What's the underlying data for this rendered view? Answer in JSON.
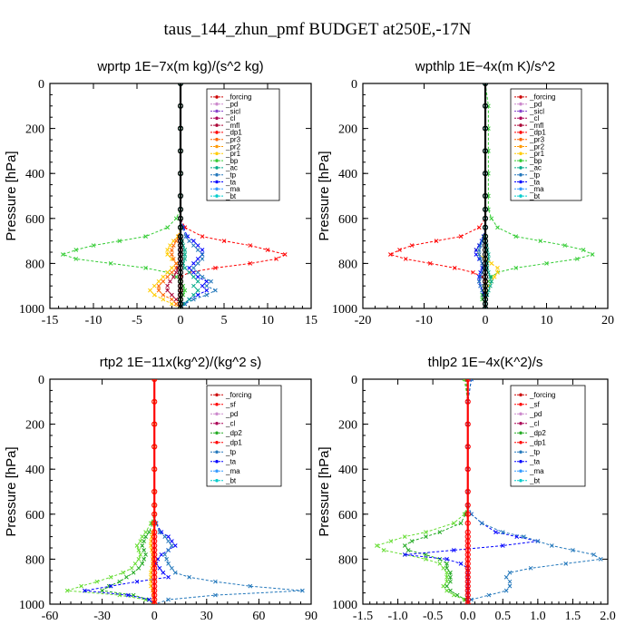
{
  "figure": {
    "title": "taus_144_zhun_pmf  BUDGET at250E,-17N"
  },
  "chart_data": [
    {
      "type": "line",
      "title": "wprtp   1E−7x(m kg)/(s^2 kg)",
      "ylabel": "Pressure [hPa]",
      "xlim": [
        -15,
        15
      ],
      "ylim": [
        1000,
        0
      ],
      "xticks": [
        -15,
        -10,
        -5,
        0,
        5,
        10,
        15
      ],
      "xtick_labels": [
        "-15",
        "-10",
        "-5",
        "0",
        "5",
        "10",
        "15"
      ],
      "yticks": [
        0,
        200,
        400,
        600,
        800,
        1000
      ],
      "pressure": [
        0,
        100,
        200,
        300,
        400,
        500,
        560,
        600,
        640,
        680,
        700,
        720,
        740,
        760,
        780,
        800,
        820,
        840,
        860,
        880,
        900,
        920,
        940,
        960,
        980,
        1000
      ],
      "legend": [
        "_forcing",
        "_pd",
        "_sicl",
        "_cl",
        "_mfl",
        "_dp1",
        "_pr3",
        "_pr2",
        "_pr1",
        "_bp",
        "_ac",
        "_tp",
        "_ta",
        "_ma",
        "_bt"
      ],
      "series": [
        {
          "name": "_dp1",
          "color": "#ff0000",
          "values": [
            0,
            0,
            0,
            0,
            0,
            0,
            0,
            0,
            0.5,
            2.5,
            5,
            8,
            10,
            12,
            11,
            8,
            4,
            1,
            0,
            0,
            0,
            0,
            0,
            0,
            0,
            0
          ]
        },
        {
          "name": "_bp",
          "color": "#33cc33",
          "values": [
            0,
            0,
            0,
            0,
            0,
            0,
            0,
            -0.5,
            -1.5,
            -4,
            -7,
            -10,
            -12,
            -13.5,
            -12,
            -8,
            -4,
            -1.5,
            -0.5,
            0,
            0.3,
            0.5,
            0.3,
            0,
            0,
            0
          ]
        },
        {
          "name": "_ta",
          "color": "#0000ff",
          "values": [
            0,
            0,
            0,
            0,
            0,
            0,
            0,
            0,
            0.3,
            0.8,
            1.5,
            2,
            2.5,
            2.5,
            2,
            1.5,
            1,
            1.5,
            2,
            3,
            2.5,
            3,
            2,
            1,
            0.5,
            0
          ]
        },
        {
          "name": "_tp",
          "color": "#2277bb",
          "values": [
            0,
            0,
            0,
            0,
            0,
            0,
            0,
            0,
            0.2,
            0.6,
            1,
            1.5,
            2,
            2.5,
            2.5,
            2,
            1.5,
            2,
            2.5,
            3.5,
            3,
            4,
            3,
            1.5,
            0.5,
            0
          ]
        },
        {
          "name": "_pr1",
          "color": "#ffcc00",
          "values": [
            0,
            0,
            0,
            0,
            0,
            0,
            0,
            0,
            0,
            -0.3,
            -0.8,
            -1.2,
            -1.5,
            -1.5,
            -1,
            -0.5,
            -1,
            -1.5,
            -2,
            -2.5,
            -3,
            -3.5,
            -3,
            -2,
            -1,
            0
          ]
        },
        {
          "name": "_pr3",
          "color": "#ff6600",
          "values": [
            0,
            0,
            0,
            0,
            0,
            0,
            0,
            0,
            0,
            -0.2,
            -0.5,
            -0.8,
            -1,
            -1,
            -0.8,
            -0.5,
            -0.5,
            -1,
            -1.5,
            -2,
            -2.5,
            -2.5,
            -2,
            -1,
            -0.5,
            0
          ]
        },
        {
          "name": "_mfl",
          "color": "#aa0033",
          "values": [
            0,
            0,
            0,
            0,
            0,
            0,
            0,
            0,
            0,
            0,
            0,
            0,
            0,
            0,
            0,
            0,
            -0.3,
            -0.5,
            -0.8,
            -1.2,
            -1.5,
            -1.5,
            -1,
            -0.5,
            0,
            0
          ]
        },
        {
          "name": "_ac",
          "color": "#00aa88",
          "values": [
            0,
            0,
            0,
            0,
            0,
            0,
            0,
            0,
            0,
            0,
            0.2,
            0.3,
            0.5,
            0.5,
            0.5,
            0.3,
            0.5,
            1,
            1.5,
            2,
            1.5,
            2,
            1.5,
            1,
            0.3,
            0
          ]
        },
        {
          "name": "_forcing",
          "color": "#000000",
          "values": [
            0,
            0,
            0,
            0,
            0,
            0,
            0,
            0,
            0,
            0,
            0,
            0,
            0,
            0,
            0,
            0,
            0,
            0,
            0,
            0,
            0,
            0,
            0,
            0,
            0,
            0
          ]
        }
      ]
    },
    {
      "type": "line",
      "title": "wpthlp   1E−4x(m K)/s^2",
      "ylabel": "Pressure [hPa]",
      "xlim": [
        -20,
        20
      ],
      "ylim": [
        1000,
        0
      ],
      "xticks": [
        -20,
        -10,
        0,
        10,
        20
      ],
      "xtick_labels": [
        "-20",
        "-10",
        "0",
        "10",
        "20"
      ],
      "yticks": [
        0,
        200,
        400,
        600,
        800,
        1000
      ],
      "pressure": [
        0,
        100,
        200,
        300,
        400,
        500,
        560,
        600,
        640,
        680,
        700,
        720,
        740,
        760,
        780,
        800,
        820,
        840,
        860,
        880,
        900,
        920,
        940,
        960,
        980,
        1000
      ],
      "legend": [
        "_forcing",
        "_pd",
        "_sicl",
        "_cl",
        "_mfl",
        "_dp1",
        "_pr3",
        "_pr2",
        "_pr1",
        "_bp",
        "_ac",
        "_tp",
        "_ta",
        "_ma",
        "_bt"
      ],
      "series": [
        {
          "name": "_dp1",
          "color": "#ff0000",
          "values": [
            0,
            0,
            0,
            0,
            0,
            0,
            0,
            0,
            -1,
            -4,
            -8,
            -12,
            -14,
            -15.5,
            -13,
            -9,
            -5,
            -2,
            -0.5,
            0,
            0,
            0,
            0,
            0,
            0,
            0
          ]
        },
        {
          "name": "_bp",
          "color": "#33cc33",
          "values": [
            0,
            0.5,
            0.5,
            0.5,
            0.5,
            0.5,
            0.5,
            1,
            2,
            5,
            9,
            13,
            16,
            17.5,
            15,
            10,
            5,
            2,
            1,
            0.5,
            0,
            0,
            -0.5,
            -0.5,
            0,
            0
          ]
        },
        {
          "name": "_pr1",
          "color": "#ffcc00",
          "values": [
            0,
            0,
            0,
            0,
            0,
            0,
            0,
            0,
            0,
            0,
            -0.5,
            -1,
            -1.5,
            -1,
            0,
            1,
            2,
            2,
            1.5,
            1,
            0.5,
            0,
            0,
            0,
            0,
            0
          ]
        },
        {
          "name": "_ta",
          "color": "#0000ff",
          "values": [
            0,
            0,
            0,
            0,
            0,
            0,
            0,
            0,
            0,
            -0.3,
            -0.6,
            -1,
            -1.5,
            -1.5,
            -1,
            -0.5,
            -0.5,
            -0.8,
            -1,
            -1,
            -0.8,
            -0.5,
            -0.3,
            0,
            0,
            0
          ]
        },
        {
          "name": "_tp",
          "color": "#2277bb",
          "values": [
            0,
            0,
            0,
            0,
            0,
            0,
            0,
            0,
            0,
            -0.2,
            -0.5,
            -0.8,
            -1,
            -1,
            -0.8,
            -0.5,
            -0.3,
            -0.5,
            -0.8,
            -1,
            -0.8,
            -0.5,
            -0.3,
            0,
            0,
            0
          ]
        },
        {
          "name": "_ac",
          "color": "#00aa88",
          "values": [
            0,
            0,
            0,
            0,
            0,
            0,
            0,
            0,
            0,
            0,
            0,
            0.2,
            0.3,
            0.5,
            0.5,
            0.3,
            0.3,
            0.5,
            0.8,
            1,
            0.8,
            0.5,
            0.3,
            0,
            0,
            0
          ]
        },
        {
          "name": "_forcing",
          "color": "#000000",
          "values": [
            0,
            0,
            0,
            0,
            0,
            0,
            0,
            0,
            0,
            0,
            0,
            0,
            0,
            0,
            0,
            0,
            0,
            0,
            0,
            0,
            0,
            0,
            0,
            0,
            0,
            0
          ]
        }
      ]
    },
    {
      "type": "line",
      "title": "rtp2   1E−11x(kg^2)/(kg^2 s)",
      "ylabel": "Pressure [hPa]",
      "xlim": [
        -60,
        90
      ],
      "ylim": [
        1000,
        0
      ],
      "xticks": [
        -60,
        -30,
        0,
        30,
        60,
        90
      ],
      "xtick_labels": [
        "-60",
        "-30",
        "0",
        "30",
        "60",
        "90"
      ],
      "yticks": [
        0,
        200,
        400,
        600,
        800,
        1000
      ],
      "pressure": [
        0,
        100,
        200,
        300,
        400,
        500,
        560,
        600,
        640,
        680,
        700,
        720,
        740,
        760,
        780,
        800,
        820,
        840,
        860,
        880,
        900,
        920,
        940,
        960,
        980,
        1000
      ],
      "legend": [
        "_forcing",
        "_sf",
        "_pd",
        "_cl",
        "_dp2",
        "_dp1",
        "_tp",
        "_ta",
        "_ma",
        "_bt"
      ],
      "series": [
        {
          "name": "_dp1",
          "color": "#66dd33",
          "values": [
            0,
            0,
            0,
            0,
            0,
            0,
            0,
            0,
            -2,
            -5,
            -7,
            -8,
            -10,
            -9,
            -8,
            -9,
            -11,
            -13,
            -18,
            -25,
            -33,
            -42,
            -50,
            -20,
            -5,
            0
          ]
        },
        {
          "name": "_dp2",
          "color": "#22aa22",
          "values": [
            0,
            0,
            0,
            0,
            0,
            0,
            0,
            0,
            -1,
            -3,
            -5,
            -6,
            -7,
            -6,
            -5,
            -6,
            -7,
            -9,
            -12,
            -16,
            -20,
            -26,
            -30,
            -12,
            -3,
            0
          ]
        },
        {
          "name": "_ta",
          "color": "#0000ff",
          "values": [
            0,
            0,
            0,
            0,
            0,
            0,
            0,
            0,
            1,
            4,
            8,
            10,
            12,
            8,
            4,
            2,
            1,
            3,
            5,
            8,
            -10,
            -25,
            -40,
            -15,
            -3,
            0
          ]
        },
        {
          "name": "_tp",
          "color": "#2277bb",
          "values": [
            0,
            0,
            0,
            0,
            0,
            0,
            0,
            0,
            1,
            3,
            6,
            8,
            10,
            8,
            6,
            7,
            8,
            10,
            12,
            20,
            35,
            55,
            85,
            35,
            8,
            0
          ]
        },
        {
          "name": "_cl",
          "color": "#ffcc00",
          "values": [
            0,
            0,
            0,
            0,
            0,
            0,
            0,
            0,
            -0.5,
            -1,
            -1.5,
            -2,
            -2,
            -1.5,
            -1,
            -1,
            -1,
            -1.5,
            -2,
            -2,
            -2,
            -2,
            -1,
            -0.5,
            0,
            0
          ]
        },
        {
          "name": "_forcing",
          "color": "#ff0000",
          "values": [
            0,
            0,
            0,
            0,
            0,
            0,
            0,
            0,
            0,
            0,
            0,
            0,
            0,
            0,
            0,
            0,
            0,
            0,
            0,
            0,
            0,
            0,
            0,
            0,
            0,
            0
          ]
        }
      ]
    },
    {
      "type": "line",
      "title": "thlp2   1E−4x(K^2)/s",
      "ylabel": "Pressure [hPa]",
      "xlim": [
        -1.5,
        2.0
      ],
      "ylim": [
        1000,
        0
      ],
      "xticks": [
        -1.5,
        -1.0,
        -0.5,
        0.0,
        0.5,
        1.0,
        1.5,
        2.0
      ],
      "xtick_labels": [
        "-1.5",
        "-1.0",
        "-0.5",
        "0.0",
        "0.5",
        "1.0",
        "1.5",
        "2.0"
      ],
      "yticks": [
        0,
        200,
        400,
        600,
        800,
        1000
      ],
      "pressure": [
        0,
        100,
        200,
        300,
        400,
        500,
        560,
        600,
        640,
        680,
        700,
        720,
        740,
        760,
        780,
        800,
        820,
        840,
        860,
        880,
        900,
        920,
        940,
        960,
        980,
        1000
      ],
      "legend": [
        "_forcing",
        "_sf",
        "_pd",
        "_cl",
        "_dp2",
        "_dp1",
        "_tp",
        "_ta",
        "_ma",
        "_bt"
      ],
      "series": [
        {
          "name": "_dp1",
          "color": "#66dd33",
          "values": [
            -0.05,
            0,
            0,
            0,
            0,
            0,
            0,
            -0.05,
            -0.2,
            -0.6,
            -0.9,
            -1.1,
            -1.3,
            -1.2,
            -0.9,
            -0.6,
            -0.4,
            -0.35,
            -0.3,
            -0.3,
            -0.3,
            -0.35,
            -0.3,
            -0.2,
            -0.05,
            0
          ]
        },
        {
          "name": "_dp2",
          "color": "#22aa22",
          "values": [
            -0.03,
            0,
            0,
            0,
            0,
            0,
            0,
            -0.03,
            -0.1,
            -0.4,
            -0.6,
            -0.8,
            -0.9,
            -0.85,
            -0.6,
            -0.4,
            -0.3,
            -0.3,
            -0.25,
            -0.25,
            -0.25,
            -0.3,
            -0.25,
            -0.15,
            -0.03,
            0
          ]
        },
        {
          "name": "_ta",
          "color": "#0000ff",
          "values": [
            0.05,
            0,
            0,
            0,
            0,
            0,
            0,
            0.05,
            0.2,
            0.4,
            0.7,
            1.0,
            0.5,
            -0.2,
            -0.9,
            -0.3,
            -0.1,
            0,
            0,
            0,
            0,
            0,
            0,
            0,
            0,
            0
          ]
        },
        {
          "name": "_tp",
          "color": "#2277bb",
          "values": [
            0.05,
            0,
            0,
            0,
            0,
            0,
            0,
            0.05,
            0.2,
            0.5,
            0.8,
            1.0,
            1.2,
            1.5,
            1.8,
            1.9,
            1.4,
            0.9,
            0.6,
            0.55,
            0.6,
            0.6,
            0.55,
            0.3,
            0.05,
            0
          ]
        },
        {
          "name": "_forcing",
          "color": "#ff0000",
          "values": [
            0,
            0,
            0,
            0,
            0,
            0,
            0,
            0,
            0,
            0,
            0,
            0,
            0,
            0,
            0,
            0,
            0,
            0,
            0,
            0,
            0,
            0,
            0,
            0,
            0,
            0
          ]
        }
      ]
    }
  ]
}
